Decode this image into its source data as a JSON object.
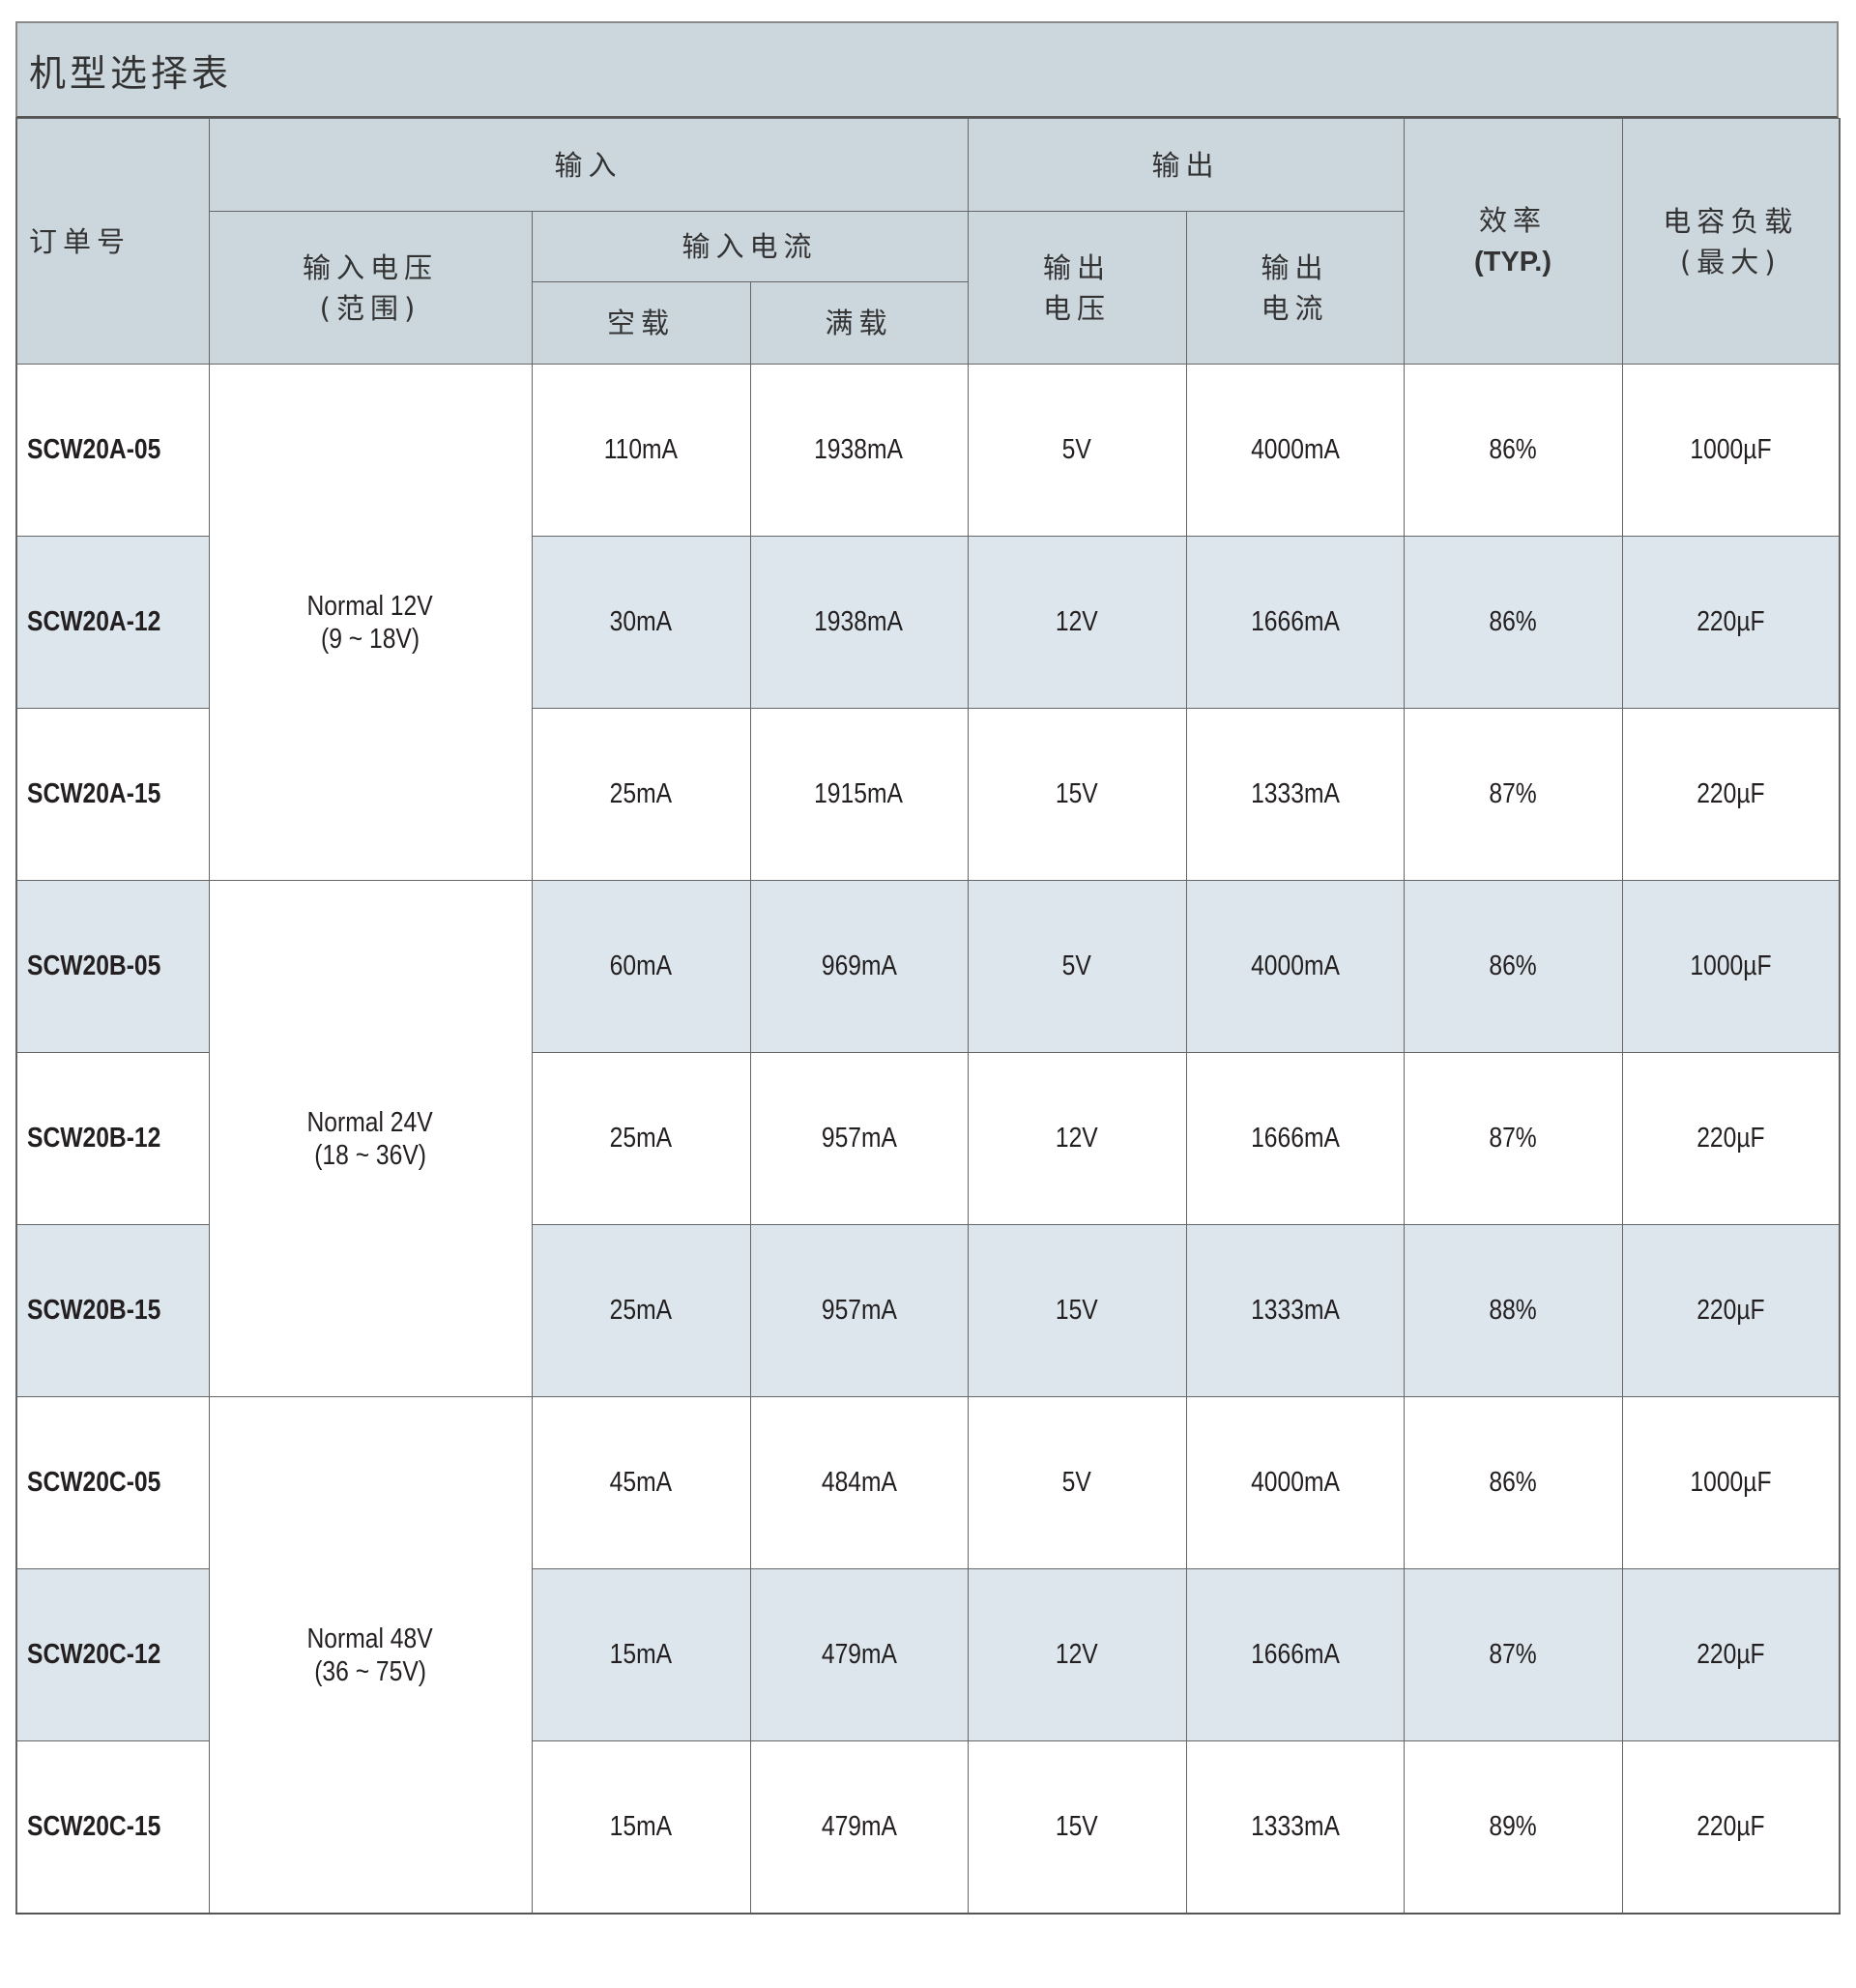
{
  "title": "机型选择表",
  "headers": {
    "order_no": "订单号",
    "input": "输入",
    "output": "输出",
    "input_voltage": "输入电压",
    "input_voltage_sub": "(范围)",
    "input_current": "输入电流",
    "no_load": "空载",
    "full_load": "满载",
    "output_voltage_1": "输出",
    "output_voltage_2": "电压",
    "output_current_1": "输出",
    "output_current_2": "电流",
    "efficiency": "效率",
    "efficiency_sub": "(TYP.)",
    "cap_load": "电容负载",
    "cap_load_sub": "(最大)"
  },
  "groups": [
    {
      "voltage": "Normal 12V",
      "range": "(9 ~ 18V)"
    },
    {
      "voltage": "Normal 24V",
      "range": "(18 ~ 36V)"
    },
    {
      "voltage": "Normal 48V",
      "range": "(36 ~ 75V)"
    }
  ],
  "rows": [
    {
      "model": "SCW20A-05",
      "no_load": "110mA",
      "full_load": "1938mA",
      "vout": "5V",
      "iout": "4000mA",
      "eff": "86%",
      "cap": "1000µF"
    },
    {
      "model": "SCW20A-12",
      "no_load": "30mA",
      "full_load": "1938mA",
      "vout": "12V",
      "iout": "1666mA",
      "eff": "86%",
      "cap": "220µF"
    },
    {
      "model": "SCW20A-15",
      "no_load": "25mA",
      "full_load": "1915mA",
      "vout": "15V",
      "iout": "1333mA",
      "eff": "87%",
      "cap": "220µF"
    },
    {
      "model": "SCW20B-05",
      "no_load": "60mA",
      "full_load": "969mA",
      "vout": "5V",
      "iout": "4000mA",
      "eff": "86%",
      "cap": "1000µF"
    },
    {
      "model": "SCW20B-12",
      "no_load": "25mA",
      "full_load": "957mA",
      "vout": "12V",
      "iout": "1666mA",
      "eff": "87%",
      "cap": "220µF"
    },
    {
      "model": "SCW20B-15",
      "no_load": "25mA",
      "full_load": "957mA",
      "vout": "15V",
      "iout": "1333mA",
      "eff": "88%",
      "cap": "220µF"
    },
    {
      "model": "SCW20C-05",
      "no_load": "45mA",
      "full_load": "484mA",
      "vout": "5V",
      "iout": "4000mA",
      "eff": "86%",
      "cap": "1000µF"
    },
    {
      "model": "SCW20C-12",
      "no_load": "15mA",
      "full_load": "479mA",
      "vout": "12V",
      "iout": "1666mA",
      "eff": "87%",
      "cap": "220µF"
    },
    {
      "model": "SCW20C-15",
      "no_load": "15mA",
      "full_load": "479mA",
      "vout": "15V",
      "iout": "1333mA",
      "eff": "89%",
      "cap": "220µF"
    }
  ],
  "shaded_rows": [
    1,
    3,
    5,
    7
  ],
  "colors": {
    "header_bg": "#cbd6dd",
    "shade_bg": "#dce6ec"
  }
}
